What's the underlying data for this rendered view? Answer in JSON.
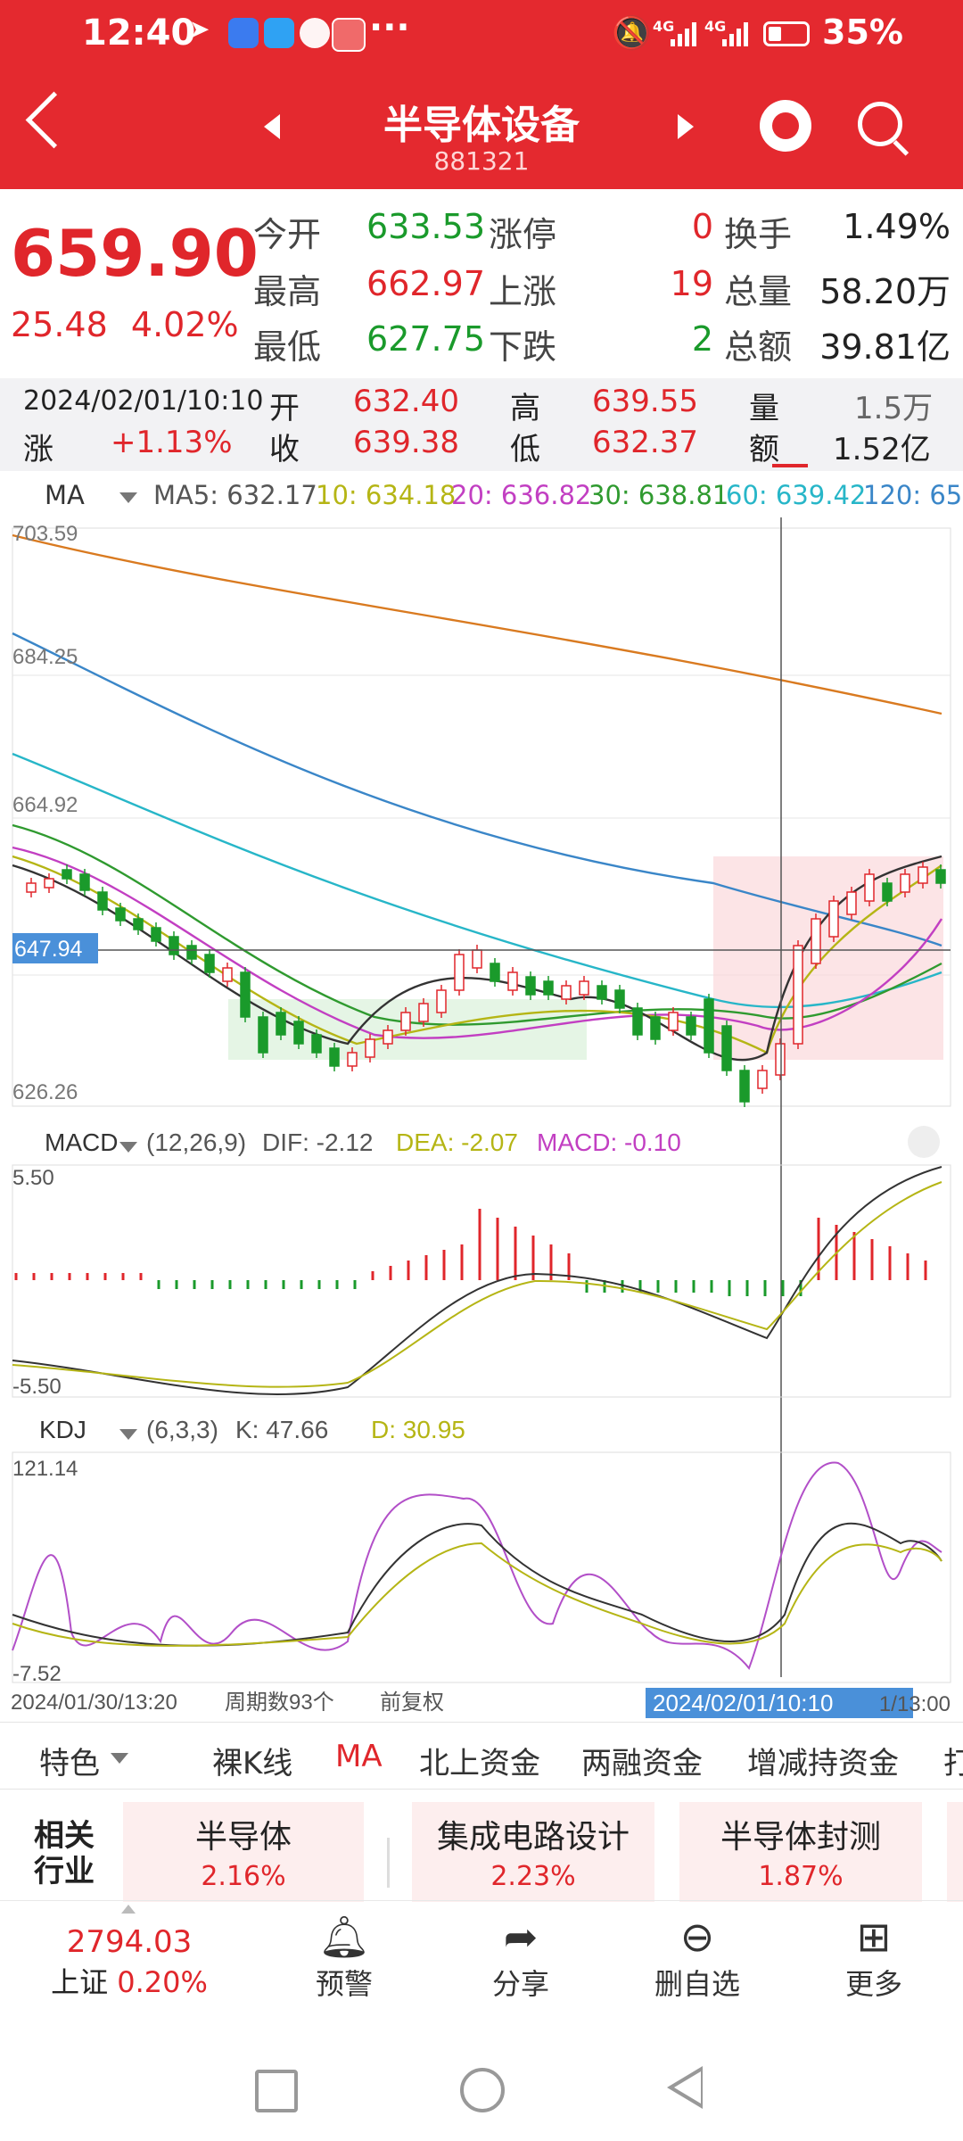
{
  "status": {
    "time": "12:40",
    "battery": "35%",
    "net1": "4G",
    "net2": "4G"
  },
  "header": {
    "title": "半导体设备",
    "code": "881321"
  },
  "quote": {
    "price": "659.90",
    "change": "25.48",
    "change_pct": "4.02%",
    "rows": [
      {
        "l1": "今开",
        "v1": "633.53",
        "l2": "涨停",
        "v2": "0",
        "l3": "换手",
        "v3": "1.49%"
      },
      {
        "l1": "最高",
        "v1": "662.97",
        "l2": "上涨",
        "v2": "19",
        "l3": "总量",
        "v3": "58.20万"
      },
      {
        "l1": "最低",
        "v1": "627.75",
        "l2": "下跌",
        "v2": "2",
        "l3": "总额",
        "v3": "39.81亿"
      }
    ]
  },
  "infobar": {
    "datetime": "2024/02/01/10:10",
    "open_l": "开",
    "open_v": "632.40",
    "high_l": "高",
    "high_v": "639.55",
    "vol_l": "量",
    "vol_v": "1.5万",
    "chg_l": "涨",
    "chg_v": "+1.13%",
    "close_l": "收",
    "close_v": "639.38",
    "low_l": "低",
    "low_v": "632.37",
    "amt_l": "额",
    "amt_v": "1.52亿"
  },
  "ma_legend": {
    "name": "MA",
    "ma5": "MA5: 632.17",
    "ma10": "10: 634.18",
    "ma20": "20: 636.82",
    "ma30": "30: 638.81",
    "ma60": "60: 639.42",
    "ma120": "120: 65"
  },
  "macd_legend": {
    "name": "MACD",
    "params": "(12,26,9)",
    "dif": "DIF: -2.12",
    "dea": "DEA: -2.07",
    "macd": "MACD: -0.10"
  },
  "kdj_legend": {
    "name": "KDJ",
    "params": "(6,3,3)",
    "k": "K: 47.66",
    "d": "D: 30.95"
  },
  "axis": {
    "main": [
      "703.59",
      "684.25",
      "664.92",
      "647.94",
      "626.26"
    ],
    "macd": [
      "5.50",
      "-5.50"
    ],
    "kdj": [
      "121.14",
      "-7.52"
    ],
    "start_date": "2024/01/30/13:20",
    "period_count": "周期数93个",
    "adjust": "前复权",
    "cursor_date": "2024/02/01/10:10",
    "end_date": "1/13:00"
  },
  "tabs": [
    "特色",
    "裸K线",
    "MA",
    "北上资金",
    "两融资金",
    "增减持资金",
    "打"
  ],
  "industry": {
    "label1": "相关",
    "label2": "行业",
    "cards": [
      {
        "name": "半导体",
        "pct": "2.16%"
      },
      {
        "name": "集成电路设计",
        "pct": "2.23%"
      },
      {
        "name": "半导体封测",
        "pct": "1.87%"
      }
    ]
  },
  "bottom_nav": {
    "index_value": "2794.03",
    "index_name": "上证",
    "index_pct": "0.20%",
    "items": [
      {
        "icon": "bell-icon",
        "label": "预警"
      },
      {
        "icon": "share-icon",
        "label": "分享"
      },
      {
        "icon": "minus-circle-icon",
        "label": "删自选"
      },
      {
        "icon": "grid-icon",
        "label": "更多"
      }
    ]
  },
  "colors": {
    "brand_red": "#e4292f",
    "up": "#e0262b",
    "down": "#1a9a2b",
    "ma5": "#333333",
    "ma10": "#b5b515",
    "ma20": "#c23fc2",
    "ma30": "#2f9a2f",
    "ma60": "#27b6c8",
    "ma120": "#3a86c8",
    "ma250": "#d97a20"
  }
}
